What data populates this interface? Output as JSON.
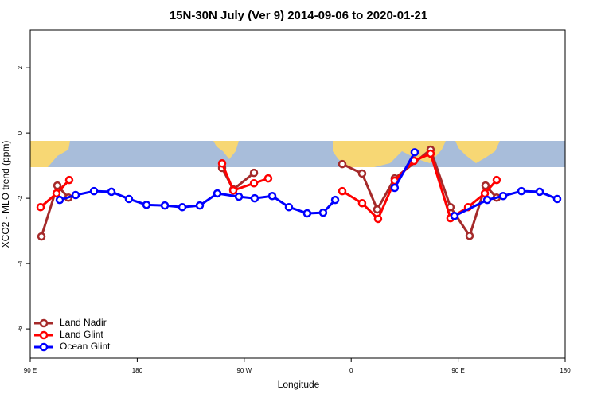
{
  "chart_data": {
    "type": "line",
    "title": "15N-30N July (Ver 9)   2014-09-06 to 2020-01-21",
    "x_label": "Longitude",
    "y_label": "XCO2 - MLO trend (ppm)",
    "xlim": [
      90,
      540
    ],
    "ylim": [
      -6.9,
      3.15
    ],
    "xticks": [
      {
        "value": 90,
        "label": "90 E"
      },
      {
        "value": 180,
        "label": "180"
      },
      {
        "value": 270,
        "label": "90 W"
      },
      {
        "value": 360,
        "label": "0"
      },
      {
        "value": 450,
        "label": "90 E"
      },
      {
        "value": 540,
        "label": "180"
      }
    ],
    "yticks": [
      2,
      0,
      -2,
      -4,
      -6
    ],
    "legend": "bottom-left",
    "series": [
      {
        "name": "Land Nadir",
        "color": "#a52a2a",
        "x": [
          99.4,
          112.8,
          122.1,
          null,
          251.4,
          260.8,
          278.2,
          null,
          352.5,
          369.2,
          381.9,
          396.6,
          426.8,
          443.5,
          459.6,
          473.0,
          482.4
        ],
        "values": [
          -3.17,
          -1.61,
          -1.98,
          null,
          -1.07,
          -1.73,
          -1.22,
          null,
          -0.95,
          -1.24,
          -2.34,
          -1.39,
          -0.51,
          -2.27,
          -3.15,
          -1.61,
          -1.98
        ]
      },
      {
        "name": "Land Glint",
        "color": "#ff0000",
        "x": [
          98.7,
          112.1,
          122.8,
          null,
          251.4,
          260.8,
          278.2,
          290.2,
          null,
          352.5,
          369.2,
          382.6,
          396.6,
          412.8,
          426.8,
          443.5,
          458.3,
          472.4,
          482.4
        ],
        "values": [
          -2.27,
          -1.85,
          -1.44,
          null,
          -0.93,
          -1.76,
          -1.54,
          -1.39,
          null,
          -1.78,
          -2.15,
          -2.63,
          -1.46,
          -0.85,
          -0.63,
          -2.61,
          -2.27,
          -1.85,
          -1.44
        ]
      },
      {
        "name": "Ocean Glint",
        "color": "#0000ff",
        "x": [
          114.8,
          128.2,
          143.6,
          158.3,
          173.0,
          187.8,
          203.2,
          217.9,
          232.6,
          247.4,
          265.5,
          278.8,
          293.6,
          307.6,
          323.0,
          336.4,
          346.5,
          null,
          396.6,
          413.4,
          null,
          446.9,
          474.4,
          487.8,
          503.2,
          518.6,
          533.3
        ],
        "values": [
          -2.05,
          -1.9,
          -1.78,
          -1.8,
          -2.02,
          -2.2,
          -2.22,
          -2.27,
          -2.22,
          -1.85,
          -1.95,
          -2.0,
          -1.93,
          -2.27,
          -2.46,
          -2.44,
          -2.05,
          null,
          -1.68,
          -0.59,
          null,
          -2.54,
          -2.05,
          -1.93,
          -1.78,
          -1.8,
          -2.02
        ]
      }
    ]
  }
}
